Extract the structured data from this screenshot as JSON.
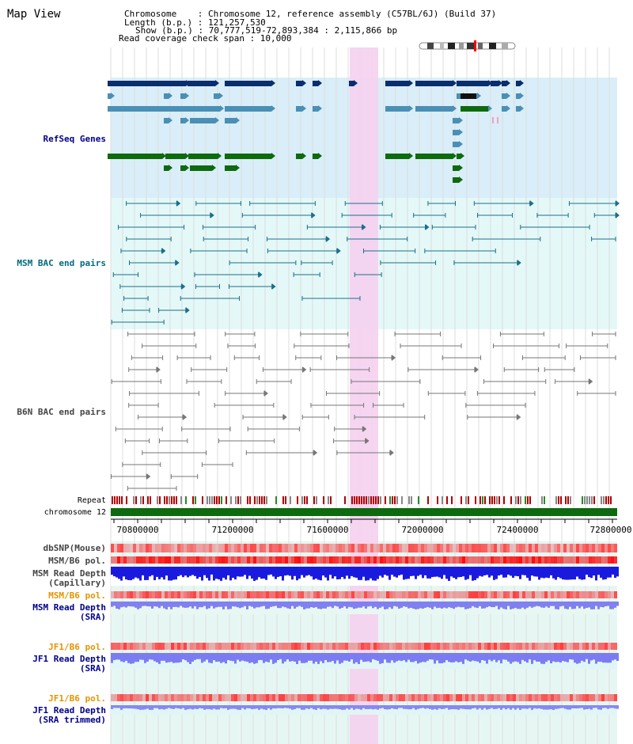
{
  "header": {
    "title": "Map View",
    "info_lines": [
      "Chromosome    : Chromosome 12, reference assembly (C57BL/6J) (Build 37)",
      "Length (b.p.) : 121,257,530",
      "Show (b.p.) : 70,777,519-72,893,384 : 2,115,866 bp",
      "Read coverage check span : 10,000"
    ]
  },
  "tracks": {
    "refseq": "RefSeq Genes",
    "msm_bac": "MSM BAC end pairs",
    "b6n_bac": "B6N BAC end pairs",
    "repeat": "Repeat",
    "chromosome": "chromosome 12",
    "dbsnp": "dbSNP(Mouse)",
    "msm_b6_pol_1": "MSM/B6 pol.",
    "msm_read_depth_cap_1": "MSM Read Depth",
    "msm_read_depth_cap_2": "(Capillary)",
    "msm_b6_pol_2": "MSM/B6 pol.",
    "msm_read_depth_sra_1": "MSM Read Depth",
    "msm_read_depth_sra_2": "(SRA)",
    "jf1_b6_pol_1": "JF1/B6 pol.",
    "jf1_read_depth_sra_1": "JF1 Read Depth",
    "jf1_read_depth_sra_2": "(SRA)",
    "jf1_b6_pol_2": "JF1/B6 pol.",
    "jf1_read_depth_trim_1": "JF1 Read Depth",
    "jf1_read_depth_trim_2": "(SRA trimmed)"
  },
  "axis": {
    "ticks": [
      "70800000",
      "71200000",
      "71600000",
      "72000000",
      "72400000",
      "72800000"
    ]
  },
  "colors": {
    "refseq_dark": "#0a2d6e",
    "refseq_mid": "#4a8fb5",
    "refseq_green": "#0e6a0e",
    "msm_line": "#1a6f8a",
    "b6n_line": "#777777",
    "highlight": "#f5d0f0",
    "label_blue": "#00008b",
    "label_teal": "#006b80",
    "label_orange": "#e59400",
    "label_grey": "#444444"
  }
}
